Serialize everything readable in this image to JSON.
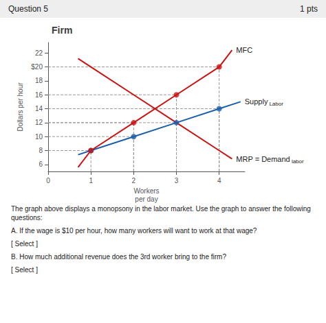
{
  "chart_data": {
    "type": "line",
    "title": "Firm",
    "header": [
      "Question 5",
      "1 pts"
    ],
    "ylabel": "Dollars per hour",
    "xlabel": "Workers\nper day",
    "xlim": [
      0,
      4.6
    ],
    "xticks": [
      0,
      1,
      2,
      3,
      4
    ],
    "ylim": [
      5,
      23.5
    ],
    "yticks": [
      6,
      8,
      10,
      12,
      14,
      16,
      18,
      {
        "value": 20,
        "label": "$20"
      },
      22
    ],
    "grid": false,
    "series": [
      {
        "name": "Supply",
        "subscript": "Labor",
        "type": "line",
        "marker": "none",
        "color": "#1a5fa8",
        "x": [
          0.7,
          1,
          2,
          3,
          4,
          4.5
        ],
        "values": [
          7.4,
          8,
          10,
          12,
          14,
          15
        ]
      },
      {
        "name": "Supply",
        "type": "scatter",
        "marker": "circle",
        "color": "#1a5fa8",
        "x": [
          1,
          2,
          3,
          4
        ],
        "values": [
          8,
          10,
          12,
          14
        ]
      },
      {
        "name": "MFC",
        "type": "line",
        "marker": "none",
        "color": "#cc1111",
        "x": [
          0.7,
          1,
          2,
          3,
          4,
          4.3
        ],
        "values": [
          5.6,
          8,
          12,
          16,
          20,
          22.4
        ]
      },
      {
        "name": "MFC",
        "type": "scatter",
        "marker": "circle",
        "color": "#cc1111",
        "x": [
          1,
          2,
          3,
          4
        ],
        "values": [
          8,
          12,
          16,
          20
        ]
      },
      {
        "name": "MRP = Demand",
        "subscript": "labor",
        "type": "line",
        "marker": "none",
        "color": "#cc1111",
        "x": [
          0.7,
          1,
          2,
          3,
          4,
          4.3
        ],
        "values": [
          21.2,
          20,
          16,
          12,
          8,
          6.8
        ]
      }
    ],
    "annotations": [
      "The graph above displays a monopsony in the labor market. Use the graph to answer the following\nquestions:",
      "A. If the wage is $10 per hour, how many workers will want to work at that wage?",
      "[ Select ]",
      "B. How much additional revenue does the 3rd worker bring to the firm?",
      "[ Select ]"
    ]
  }
}
